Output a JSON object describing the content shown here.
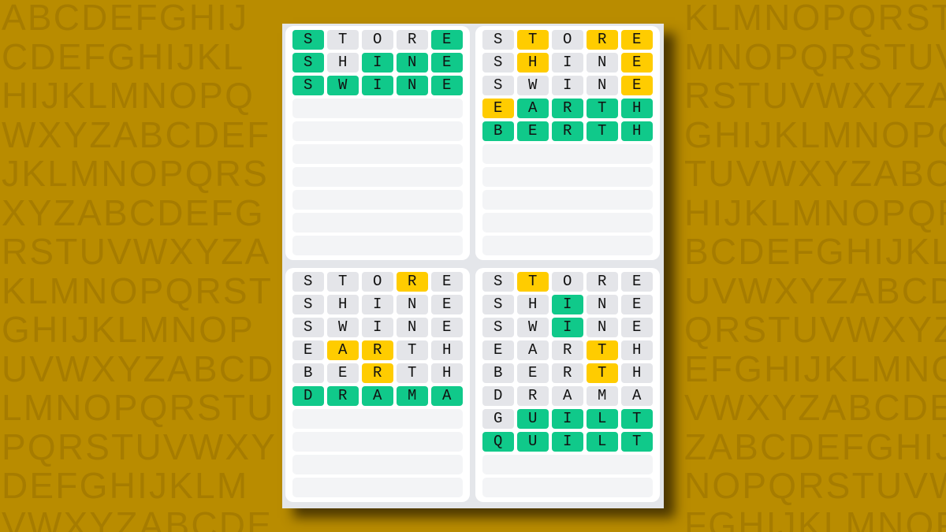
{
  "colors": {
    "background": "#b98c00",
    "correct": "#10c98a",
    "present": "#ffcc00",
    "absent": "#e4e5e9",
    "empty": "#f3f4f6"
  },
  "background_letters": [
    "ABCDEFGHIJKLMNOPQRSTUVWXYZABCDEFGH",
    "CDEFGHIJKLMNOPQRSTUVWXYZABCDEFGHIJ",
    "HIJKLMNOPQRSTUVWXYZABCDEFGHIJKLMNO",
    "WXYZABCDEFGHIJKLMNOPQRSTUVWXYZABCD",
    "JKLMNOPQRSTUVWXYZABCDEFGHIJKLMNOPQ",
    "XYZABCDEFGHIJKLMNOPQRSTUVWXYZABCDE",
    "RSTUVWXYZABCDEFGHIJKLMNOPQRSTUVWXY",
    "KLMNOPQRSTUVWXYZABCDEFGHIJKLMNOPQR",
    "GHIJKLMNOPQRSTUVWXYZABCDEFGHIJKLMN",
    "UVWXYZABCDEFGHIJKLMNOPQRSTUVWXYZAB",
    "LMNOPQRSTUVWXYZABCDEFGHIJKLMNOPQRS",
    "PQRSTUVWXYZABCDEFGHIJKLMNOPQRSTUVW",
    "DEFGHIJKLMNOPQRSTUVWXYZABCDEFGHIJK",
    "VWXYZABCDEFGHIJKLMNOPQRSTUVWXYZABC"
  ],
  "total_rows": 10,
  "boards": [
    {
      "name": "top-left",
      "rows": [
        {
          "word": "STORE",
          "states": "gxxxg"
        },
        {
          "word": "SHINE",
          "states": "gxggg"
        },
        {
          "word": "SWINE",
          "states": "ggggg"
        }
      ]
    },
    {
      "name": "top-right",
      "rows": [
        {
          "word": "STORE",
          "states": "xyxyy"
        },
        {
          "word": "SHINE",
          "states": "xyxxy"
        },
        {
          "word": "SWINE",
          "states": "xxxxy"
        },
        {
          "word": "EARTH",
          "states": "ygggg"
        },
        {
          "word": "BERTH",
          "states": "ggggg"
        }
      ]
    },
    {
      "name": "bottom-left",
      "rows": [
        {
          "word": "STORE",
          "states": "xxxyx"
        },
        {
          "word": "SHINE",
          "states": "xxxxx"
        },
        {
          "word": "SWINE",
          "states": "xxxxx"
        },
        {
          "word": "EARTH",
          "states": "xyyxx"
        },
        {
          "word": "BERTH",
          "states": "xxyxx"
        },
        {
          "word": "DRAMA",
          "states": "ggggg"
        }
      ]
    },
    {
      "name": "bottom-right",
      "rows": [
        {
          "word": "STORE",
          "states": "xyxxx"
        },
        {
          "word": "SHINE",
          "states": "xxgxx"
        },
        {
          "word": "SWINE",
          "states": "xxgxx"
        },
        {
          "word": "EARTH",
          "states": "xxxyx"
        },
        {
          "word": "BERTH",
          "states": "xxxyx"
        },
        {
          "word": "DRAMA",
          "states": "xxxxx"
        },
        {
          "word": "GUILT",
          "states": "xgggg"
        },
        {
          "word": "QUILT",
          "states": "ggggg"
        }
      ]
    }
  ]
}
